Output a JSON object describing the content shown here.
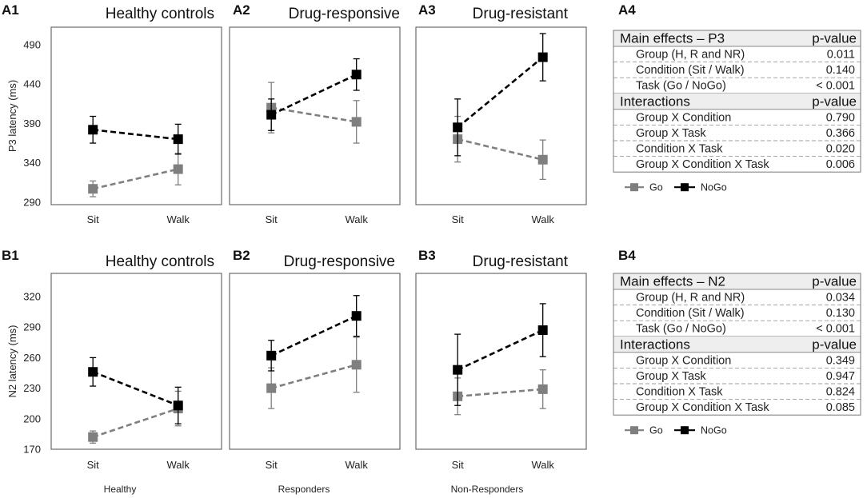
{
  "colors": {
    "go": "#7f7f7f",
    "nogo": "#000000",
    "table_header_bg": "#eeeeee"
  },
  "chart_data": [
    {
      "id": "A1",
      "type": "line",
      "title": "Healthy controls",
      "ylabel": "P3 latency (ms)",
      "categories": [
        "Sit",
        "Walk"
      ],
      "ylim": [
        290,
        500
      ],
      "yticks": [
        290,
        340,
        390,
        440,
        490
      ],
      "series": [
        {
          "name": "Go",
          "values": [
            307,
            332
          ],
          "errors": [
            10,
            20
          ]
        },
        {
          "name": "NoGo",
          "values": [
            382,
            370
          ],
          "errors": [
            17,
            19
          ]
        }
      ]
    },
    {
      "id": "A2",
      "type": "line",
      "title": "Drug-responsive",
      "categories": [
        "Sit",
        "Walk"
      ],
      "ylim": [
        290,
        500
      ],
      "series": [
        {
          "name": "Go",
          "values": [
            410,
            392
          ],
          "errors": [
            32,
            27
          ]
        },
        {
          "name": "NoGo",
          "values": [
            401,
            452
          ],
          "errors": [
            20,
            20
          ]
        }
      ]
    },
    {
      "id": "A3",
      "type": "line",
      "title": "Drug-resistant",
      "categories": [
        "Sit",
        "Walk"
      ],
      "ylim": [
        290,
        500
      ],
      "series": [
        {
          "name": "Go",
          "values": [
            370,
            344
          ],
          "errors": [
            29,
            25
          ]
        },
        {
          "name": "NoGo",
          "values": [
            385,
            474
          ],
          "errors": [
            36,
            30
          ]
        }
      ]
    },
    {
      "id": "B1",
      "type": "line",
      "title": "Healthy controls",
      "ylabel": "N2 latency (ms)",
      "xlabel": "Healthy",
      "categories": [
        "Sit",
        "Walk"
      ],
      "ylim": [
        170,
        326
      ],
      "yticks": [
        170,
        200,
        230,
        260,
        290,
        320
      ],
      "series": [
        {
          "name": "Go",
          "values": [
            182,
            210
          ],
          "errors": [
            6,
            17
          ]
        },
        {
          "name": "NoGo",
          "values": [
            246,
            213
          ],
          "errors": [
            14,
            18
          ]
        }
      ]
    },
    {
      "id": "B2",
      "type": "line",
      "title": "Drug-responsive",
      "xlabel": "Responders",
      "categories": [
        "Sit",
        "Walk"
      ],
      "ylim": [
        170,
        326
      ],
      "series": [
        {
          "name": "Go",
          "values": [
            230,
            253
          ],
          "errors": [
            20,
            27
          ]
        },
        {
          "name": "NoGo",
          "values": [
            262,
            301
          ],
          "errors": [
            15,
            20
          ]
        }
      ]
    },
    {
      "id": "B3",
      "type": "line",
      "title": "Drug-resistant",
      "xlabel": "Non-Responders",
      "categories": [
        "Sit",
        "Walk"
      ],
      "ylim": [
        170,
        326
      ],
      "series": [
        {
          "name": "Go",
          "values": [
            222,
            229
          ],
          "errors": [
            18,
            19
          ]
        },
        {
          "name": "NoGo",
          "values": [
            248,
            287
          ],
          "errors": [
            35,
            26
          ]
        }
      ]
    }
  ],
  "tables": [
    {
      "id": "A4",
      "main_header": "Main effects – P3",
      "pvalue_header": "p-value",
      "main_rows": [
        {
          "label": "Group (H, R and NR)",
          "value": "0.011"
        },
        {
          "label": "Condition (Sit / Walk)",
          "value": "0.140"
        },
        {
          "label": "Task (Go / NoGo)",
          "value": "< 0.001"
        }
      ],
      "int_header": "Interactions",
      "int_rows": [
        {
          "label": "Group X Condition",
          "value": "0.790"
        },
        {
          "label": "Group X Task",
          "value": "0.366"
        },
        {
          "label": "Condition X Task",
          "value": "0.020"
        },
        {
          "label": "Group X Condition X Task",
          "value": "0.006"
        }
      ]
    },
    {
      "id": "B4",
      "main_header": "Main effects – N2",
      "pvalue_header": "p-value",
      "main_rows": [
        {
          "label": "Group (H, R and NR)",
          "value": "0.034"
        },
        {
          "label": "Condition (Sit / Walk)",
          "value": "0.130"
        },
        {
          "label": "Task (Go / NoGo)",
          "value": "< 0.001"
        }
      ],
      "int_header": "Interactions",
      "int_rows": [
        {
          "label": "Group X Condition",
          "value": "0.349"
        },
        {
          "label": "Group X Task",
          "value": "0.947"
        },
        {
          "label": "Condition X Task",
          "value": "0.824"
        },
        {
          "label": "Group X Condition X Task",
          "value": "0.085"
        }
      ]
    }
  ],
  "legend": {
    "go": "Go",
    "nogo": "NoGo"
  }
}
